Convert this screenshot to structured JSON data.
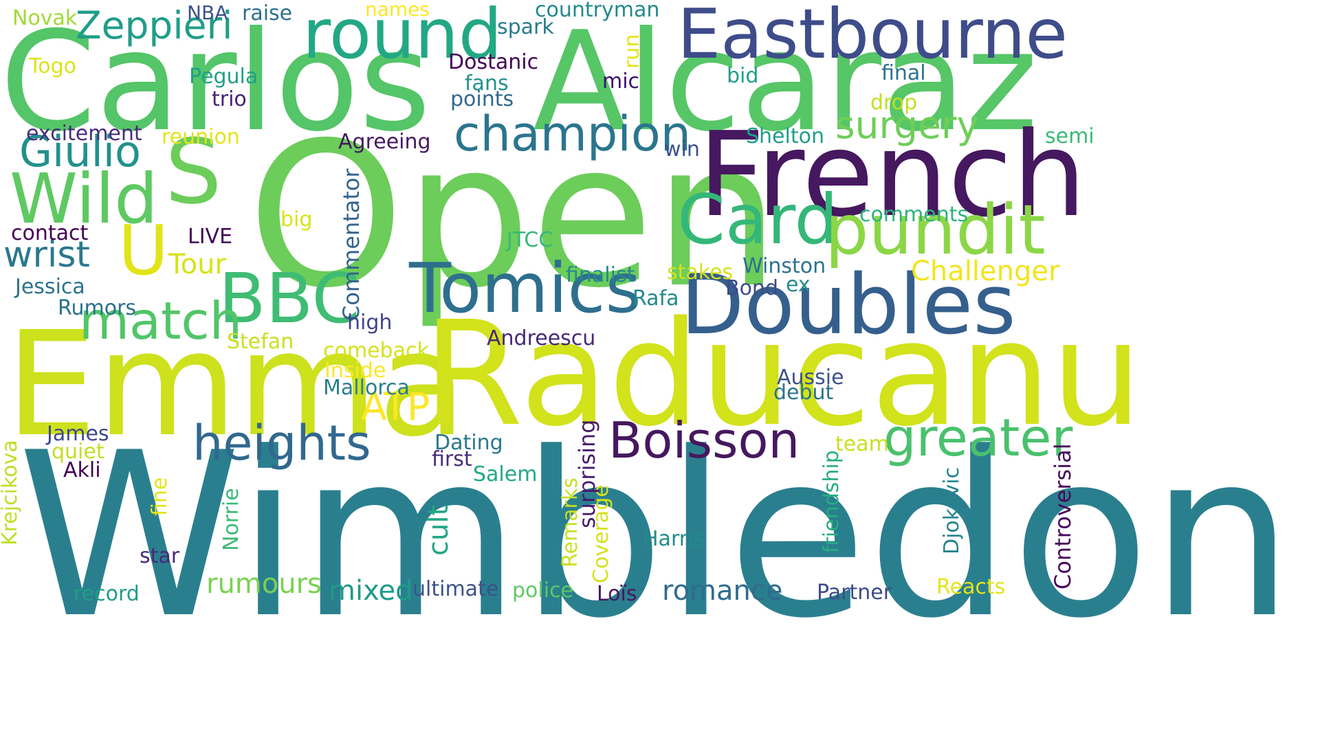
{
  "words": [
    {
      "text": "Wimbledon",
      "color": "#2a7f8e"
    },
    {
      "text": "Open",
      "color": "#6ccd5a"
    },
    {
      "text": "Carlos",
      "color": "#54c568"
    },
    {
      "text": "Alcaraz",
      "color": "#56c667"
    },
    {
      "text": "Emma",
      "color": "#cde11d"
    },
    {
      "text": "Raducanu",
      "color": "#d2e21b"
    },
    {
      "text": "French",
      "color": "#46185f"
    },
    {
      "text": "Eastbourne",
      "color": "#3e4c8a"
    },
    {
      "text": "Doubles",
      "color": "#355f8d"
    },
    {
      "text": "round",
      "color": "#22a884"
    },
    {
      "text": "S",
      "color": "#6ccd5a"
    },
    {
      "text": "Card",
      "color": "#35b779"
    },
    {
      "text": "pundit",
      "color": "#8bd646"
    },
    {
      "text": "BBC",
      "color": "#3fbc73"
    },
    {
      "text": "Tomics",
      "color": "#2e6f8e"
    },
    {
      "text": "champion",
      "color": "#2b758e"
    },
    {
      "text": "Wild",
      "color": "#5ec962"
    },
    {
      "text": "U",
      "color": "#e2e418"
    },
    {
      "text": "Giulio",
      "color": "#21918c"
    },
    {
      "text": "match",
      "color": "#52c569"
    },
    {
      "text": "heights",
      "color": "#31688e"
    },
    {
      "text": "Boisson",
      "color": "#46185f"
    },
    {
      "text": "greater",
      "color": "#4ac16d"
    },
    {
      "text": "Zeppieri",
      "color": "#1f9e89"
    },
    {
      "text": "wrist",
      "color": "#2a788e"
    },
    {
      "text": "surgery",
      "color": "#6ece58"
    },
    {
      "text": "ATP",
      "color": "#fde725"
    },
    {
      "text": "Tour",
      "color": "#d8e219"
    },
    {
      "text": "Challenger",
      "color": "#f1e51d"
    },
    {
      "text": "Commentator",
      "color": "#33638d"
    },
    {
      "text": "rumours",
      "color": "#7ad151"
    },
    {
      "text": "romance",
      "color": "#2f6c8e"
    },
    {
      "text": "mixed",
      "color": "#1f9a8a"
    },
    {
      "text": "Controversial",
      "color": "#46085c"
    },
    {
      "text": "Krejcikova",
      "color": "#bddf26"
    },
    {
      "text": "Djokovic",
      "color": "#25848e"
    },
    {
      "text": "friendship",
      "color": "#27ad81"
    },
    {
      "text": "Remarks",
      "color": "#c8e020"
    },
    {
      "text": "Coverage",
      "color": "#d5e21a"
    },
    {
      "text": "surprising",
      "color": "#481a6c"
    },
    {
      "text": "cult",
      "color": "#22a785"
    },
    {
      "text": "Norrie",
      "color": "#3aba76"
    },
    {
      "text": "fine",
      "color": "#e5e419"
    },
    {
      "text": "excitement",
      "color": "#472d7b"
    },
    {
      "text": "reunion",
      "color": "#e2e418"
    },
    {
      "text": "Agreeing",
      "color": "#46185f"
    },
    {
      "text": "Dostanic",
      "color": "#440154"
    },
    {
      "text": "Pegula",
      "color": "#1fa187"
    },
    {
      "text": "trio",
      "color": "#482173"
    },
    {
      "text": "fans",
      "color": "#20928c"
    },
    {
      "text": "points",
      "color": "#31688e"
    },
    {
      "text": "mic",
      "color": "#3b0f70"
    },
    {
      "text": "bid",
      "color": "#1f9e89"
    },
    {
      "text": "final",
      "color": "#2c728e"
    },
    {
      "text": "drop",
      "color": "#c2df23"
    },
    {
      "text": "Shelton",
      "color": "#1f9e89"
    },
    {
      "text": "semi",
      "color": "#3aba76"
    },
    {
      "text": "win",
      "color": "#3b528b"
    },
    {
      "text": "run",
      "color": "#e5e419"
    },
    {
      "text": "countryman",
      "color": "#23898e"
    },
    {
      "text": "spark",
      "color": "#287c8e"
    },
    {
      "text": "names",
      "color": "#fde725"
    },
    {
      "text": "NBA",
      "color": "#3b528b"
    },
    {
      "text": "raise",
      "color": "#2e6e8e"
    },
    {
      "text": "Novak",
      "color": "#a0da39"
    },
    {
      "text": "Togo",
      "color": "#dde318"
    },
    {
      "text": "contact",
      "color": "#440154"
    },
    {
      "text": "LIVE",
      "color": "#440154"
    },
    {
      "text": "big",
      "color": "#d8e219"
    },
    {
      "text": "JTCC",
      "color": "#35b779"
    },
    {
      "text": "comments",
      "color": "#2db27d"
    },
    {
      "text": "stakes",
      "color": "#d5e21a"
    },
    {
      "text": "Winston",
      "color": "#2c718e"
    },
    {
      "text": "finalist",
      "color": "#23898e"
    },
    {
      "text": "Bond",
      "color": "#3e4a89"
    },
    {
      "text": "ex",
      "color": "#238a8d"
    },
    {
      "text": "Rafa",
      "color": "#23898e"
    },
    {
      "text": "Jessica",
      "color": "#2c728e"
    },
    {
      "text": "Rumors",
      "color": "#2c718e"
    },
    {
      "text": "high",
      "color": "#414487"
    },
    {
      "text": "Andreescu",
      "color": "#482878"
    },
    {
      "text": "Stefan",
      "color": "#c8e020"
    },
    {
      "text": "comeback",
      "color": "#d5e21a"
    },
    {
      "text": "Inside",
      "color": "#fde725"
    },
    {
      "text": "Mallorca",
      "color": "#27808e"
    },
    {
      "text": "Aussie",
      "color": "#3b528b"
    },
    {
      "text": "debut",
      "color": "#2c728e"
    },
    {
      "text": "James",
      "color": "#3e4a89"
    },
    {
      "text": "quiet",
      "color": "#c2df23"
    },
    {
      "text": "Akli",
      "color": "#440154"
    },
    {
      "text": "Dating",
      "color": "#2a788e"
    },
    {
      "text": "first",
      "color": "#472d7b"
    },
    {
      "text": "Salem",
      "color": "#22a884"
    },
    {
      "text": "team",
      "color": "#c8e020"
    },
    {
      "text": "Harris",
      "color": "#238a8d"
    },
    {
      "text": "star",
      "color": "#482878"
    },
    {
      "text": "record",
      "color": "#1f9e89"
    },
    {
      "text": "ultimate",
      "color": "#3b528b"
    },
    {
      "text": "police",
      "color": "#5ec962"
    },
    {
      "text": "Loïs",
      "color": "#46185f"
    },
    {
      "text": "Partner",
      "color": "#3e4a89"
    },
    {
      "text": "Reacts",
      "color": "#e5e419"
    }
  ]
}
